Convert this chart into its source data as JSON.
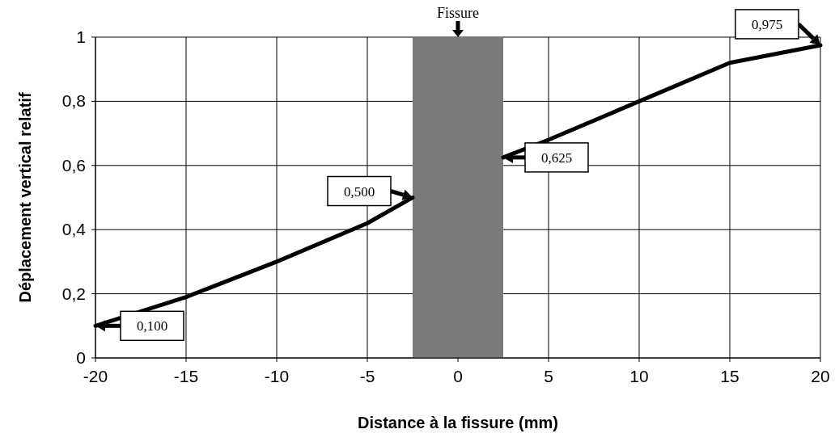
{
  "chart_data": {
    "type": "line",
    "xlabel": "Distance à la fissure (mm)",
    "ylabel": "Déplacement vertical relatif",
    "x": [
      -20,
      -15,
      -10,
      -5,
      -2.5,
      0,
      2.5,
      5,
      10,
      15,
      20
    ],
    "series": [
      {
        "color": "#000000",
        "values": [
          0.1,
          0.19,
          0.3,
          0.42,
          0.5,
          null,
          0.625,
          0.68,
          0.8,
          0.92,
          0.975
        ]
      }
    ],
    "xlim": [
      -20,
      20
    ],
    "xticks": [
      -20,
      -15,
      -10,
      -5,
      0,
      5,
      10,
      15,
      20
    ],
    "ylim": [
      0,
      1
    ],
    "yticks": [
      0,
      {
        "value": 0.2,
        "label": "0,2"
      },
      {
        "value": 0.4,
        "label": "0,4"
      },
      {
        "value": 0.6,
        "label": "0,6"
      },
      {
        "value": 0.8,
        "label": "0,8"
      },
      1
    ],
    "grid": true,
    "marker": "none",
    "line_style": "solid",
    "bands": [
      {
        "axis": "x",
        "from": -2.5,
        "to": 2.5,
        "color": "#7a7a7a"
      }
    ],
    "annotations": [
      {
        "text": "Fissure",
        "x": 0,
        "y": 1
      },
      {
        "text": "0,100",
        "x": -20,
        "y": 0.1
      },
      {
        "text": "0,500",
        "x": -2.5,
        "y": 0.5
      },
      {
        "text": "0,625",
        "x": 2.5,
        "y": 0.625
      },
      {
        "text": "0,975",
        "x": 20,
        "y": 0.975
      }
    ]
  }
}
